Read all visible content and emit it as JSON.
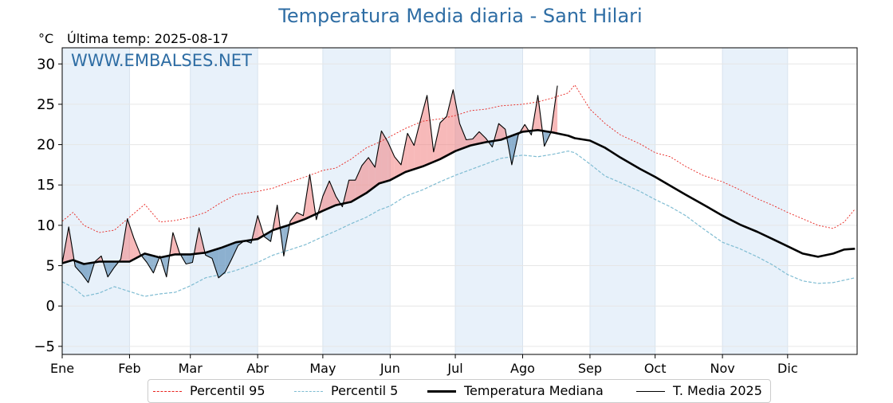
{
  "chart_data": {
    "type": "line",
    "title": "Temperatura Media diaria - Sant Hilari",
    "unit": "°C",
    "last_update": "Última temp: 2025-08-17",
    "watermark": "WWW.EMBALSES.NET",
    "xlabel": "",
    "ylabel": "",
    "ylim": [
      -6,
      32
    ],
    "xlim": [
      0,
      366
    ],
    "yticks": [
      "−5",
      "0",
      "5",
      "10",
      "15",
      "20",
      "25",
      "30"
    ],
    "ytick_values": [
      -5,
      0,
      5,
      10,
      15,
      20,
      25,
      30
    ],
    "months": [
      "Ene",
      "Feb",
      "Mar",
      "Abr",
      "May",
      "Jun",
      "Jul",
      "Ago",
      "Sep",
      "Oct",
      "Nov",
      "Dic"
    ],
    "month_start_days": [
      0,
      31,
      59,
      90,
      120,
      151,
      181,
      212,
      243,
      273,
      304,
      334
    ],
    "grid": true,
    "legend_position": "bottom-center",
    "colors": {
      "p95": "#e8231e",
      "p5": "#7fbcd2",
      "median": "#000000",
      "actual": "#000000",
      "above": "#f08080",
      "below": "#4f86b3",
      "title": "#2e6da4",
      "band": "#e8f1fa"
    },
    "series": [
      {
        "name": "Percentil 95",
        "key": "p95",
        "x": [
          0,
          5,
          10,
          17,
          24,
          31,
          38,
          45,
          52,
          59,
          66,
          73,
          80,
          90,
          97,
          104,
          112,
          120,
          126,
          133,
          140,
          146,
          151,
          158,
          166,
          174,
          181,
          188,
          195,
          202,
          212,
          219,
          226,
          233,
          236,
          243,
          250,
          257,
          266,
          273,
          280,
          287,
          295,
          304,
          312,
          320,
          327,
          334,
          341,
          348,
          355,
          360,
          365
        ],
        "values": [
          10.5,
          11.6,
          10.0,
          9.1,
          9.4,
          11.0,
          12.6,
          10.4,
          10.6,
          11.0,
          11.6,
          12.8,
          13.8,
          14.2,
          14.6,
          15.3,
          16.0,
          16.8,
          17.1,
          18.2,
          19.6,
          20.3,
          21.0,
          22.0,
          22.9,
          23.2,
          23.6,
          24.2,
          24.4,
          24.8,
          25.0,
          25.3,
          25.8,
          26.4,
          27.4,
          24.4,
          22.6,
          21.2,
          20.1,
          19.0,
          18.5,
          17.3,
          16.2,
          15.4,
          14.4,
          13.3,
          12.5,
          11.6,
          10.8,
          10.0,
          9.6,
          10.4,
          12.0
        ]
      },
      {
        "name": "Percentil 5",
        "key": "p5",
        "x": [
          0,
          5,
          10,
          17,
          24,
          31,
          38,
          45,
          52,
          59,
          66,
          73,
          80,
          90,
          97,
          104,
          112,
          120,
          126,
          133,
          140,
          146,
          151,
          158,
          166,
          174,
          181,
          188,
          195,
          202,
          212,
          219,
          226,
          233,
          236,
          243,
          250,
          257,
          266,
          273,
          280,
          287,
          295,
          304,
          312,
          320,
          327,
          334,
          341,
          348,
          355,
          360,
          365
        ],
        "values": [
          3.0,
          2.3,
          1.2,
          1.6,
          2.4,
          1.8,
          1.2,
          1.5,
          1.7,
          2.5,
          3.5,
          3.9,
          4.4,
          5.4,
          6.3,
          6.9,
          7.6,
          8.6,
          9.3,
          10.2,
          11.0,
          11.9,
          12.4,
          13.6,
          14.4,
          15.4,
          16.2,
          16.9,
          17.6,
          18.3,
          18.7,
          18.5,
          18.8,
          19.2,
          19.0,
          17.6,
          16.1,
          15.3,
          14.2,
          13.2,
          12.3,
          11.2,
          9.6,
          7.9,
          7.1,
          6.1,
          5.1,
          3.9,
          3.1,
          2.8,
          2.9,
          3.2,
          3.5
        ]
      },
      {
        "name": "Temperatura Mediana",
        "key": "median",
        "x": [
          0,
          5,
          10,
          17,
          24,
          31,
          38,
          45,
          52,
          59,
          66,
          73,
          80,
          90,
          97,
          104,
          112,
          120,
          126,
          133,
          140,
          146,
          151,
          158,
          166,
          174,
          181,
          188,
          195,
          202,
          212,
          219,
          226,
          233,
          236,
          243,
          250,
          257,
          266,
          273,
          280,
          287,
          295,
          304,
          312,
          320,
          327,
          334,
          341,
          348,
          355,
          360,
          365
        ],
        "values": [
          5.3,
          5.7,
          5.2,
          5.5,
          5.5,
          5.5,
          6.5,
          6.0,
          6.4,
          6.4,
          6.6,
          7.2,
          7.9,
          8.3,
          9.4,
          10.0,
          10.8,
          11.8,
          12.5,
          12.9,
          14.0,
          15.2,
          15.6,
          16.6,
          17.3,
          18.2,
          19.2,
          19.9,
          20.3,
          20.6,
          21.6,
          21.8,
          21.5,
          21.1,
          20.8,
          20.5,
          19.6,
          18.4,
          17.0,
          16.0,
          14.9,
          13.8,
          12.6,
          11.2,
          10.1,
          9.2,
          8.3,
          7.4,
          6.5,
          6.1,
          6.5,
          7.0,
          7.1
        ]
      },
      {
        "name": "T. Media 2025",
        "key": "actual",
        "x": [
          0,
          3,
          6,
          9,
          12,
          15,
          18,
          21,
          24,
          27,
          30,
          33,
          36,
          39,
          42,
          45,
          48,
          51,
          54,
          57,
          60,
          63,
          66,
          69,
          72,
          75,
          78,
          81,
          84,
          87,
          90,
          93,
          96,
          99,
          102,
          105,
          108,
          111,
          114,
          117,
          120,
          123,
          126,
          129,
          132,
          135,
          138,
          141,
          144,
          147,
          150,
          153,
          156,
          159,
          162,
          165,
          168,
          171,
          174,
          177,
          180,
          183,
          186,
          189,
          192,
          195,
          198,
          201,
          204,
          207,
          210,
          213,
          216,
          219,
          222,
          225,
          228
        ],
        "values": [
          5.3,
          9.8,
          4.9,
          4.0,
          2.9,
          5.5,
          6.2,
          3.6,
          4.8,
          5.8,
          10.8,
          8.4,
          6.4,
          5.4,
          4.1,
          6.2,
          3.6,
          9.1,
          6.6,
          5.2,
          5.4,
          9.7,
          6.3,
          5.9,
          3.5,
          4.2,
          5.8,
          7.5,
          8.1,
          7.8,
          11.2,
          8.6,
          8.0,
          12.5,
          6.2,
          10.5,
          11.6,
          11.2,
          16.3,
          10.7,
          13.6,
          15.5,
          13.6,
          12.3,
          15.6,
          15.6,
          17.4,
          18.4,
          17.2,
          21.7,
          20.3,
          18.5,
          17.5,
          21.4,
          19.9,
          23.1,
          26.1,
          19.1,
          22.7,
          23.5,
          26.8,
          22.6,
          20.6,
          20.7,
          21.6,
          20.8,
          19.7,
          22.6,
          21.9,
          17.5,
          21.2,
          22.5,
          21.2,
          26.1,
          19.8,
          21.5,
          27.3
        ]
      }
    ]
  }
}
